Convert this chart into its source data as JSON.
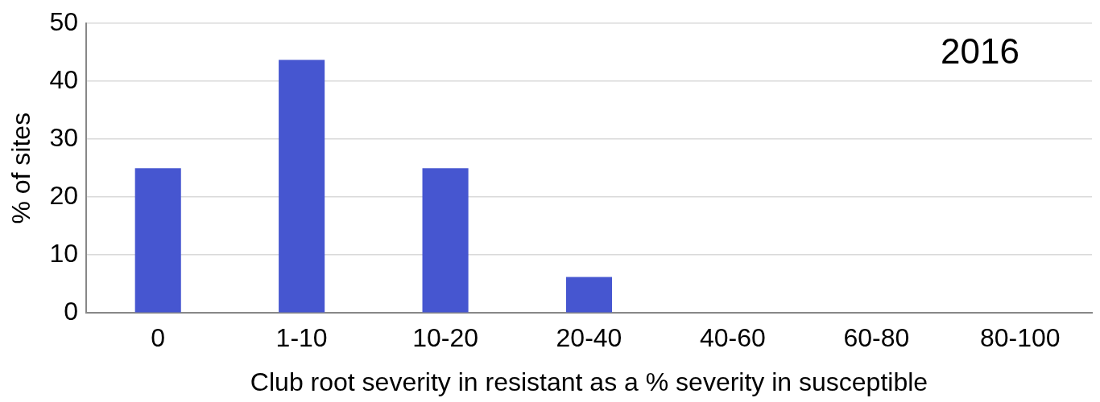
{
  "chart_data": {
    "type": "bar",
    "xlabel": "Club root severity in resistant as a % severity in susceptible",
    "ylabel": "% of sites",
    "categories": [
      "0",
      "1-10",
      "10-20",
      "20-40",
      "40-60",
      "60-80",
      "80-100"
    ],
    "values": [
      25,
      43.7,
      25,
      6.2,
      0,
      0,
      0
    ],
    "color": "#4656d0",
    "ylim": [
      0,
      50
    ],
    "yticks": [
      0,
      10,
      20,
      30,
      40,
      50
    ],
    "grid": "y",
    "annotations": [
      "2016"
    ]
  }
}
